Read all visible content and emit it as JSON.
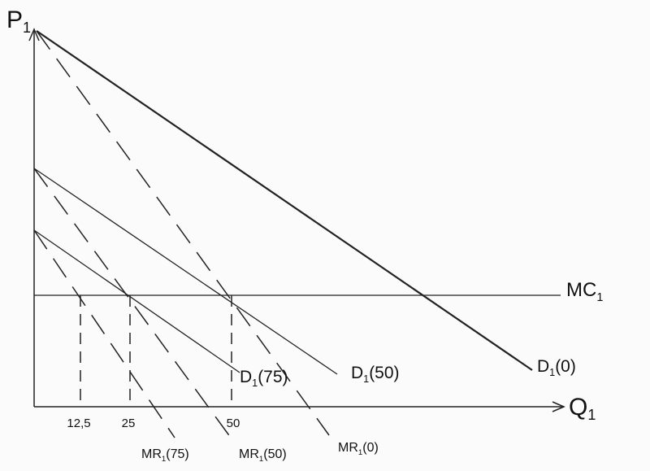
{
  "axes": {
    "y_label": {
      "main": "P",
      "sub": "1"
    },
    "x_label": {
      "main": "Q",
      "sub": "1"
    }
  },
  "ticks": [
    "12,5",
    "25",
    "50"
  ],
  "mc_label": {
    "main": "MC",
    "sub": "1"
  },
  "demand_labels": [
    {
      "main": "D",
      "sub": "1",
      "tail": "(0)"
    },
    {
      "main": "D",
      "sub": "1",
      "tail": "(50)"
    },
    {
      "main": "D",
      "sub": "1",
      "tail": "(75)"
    }
  ],
  "mr_labels": [
    {
      "main": "MR",
      "sub": "1",
      "tail": "(0)"
    },
    {
      "main": "MR",
      "sub": "1",
      "tail": "(50)"
    },
    {
      "main": "MR",
      "sub": "1",
      "tail": "(75)"
    }
  ]
}
